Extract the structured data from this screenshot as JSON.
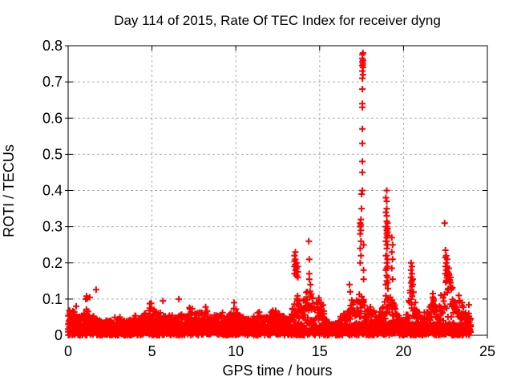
{
  "page": {
    "background": "#ffffff"
  },
  "chart_data": {
    "type": "scatter",
    "title": "Day 114 of 2015, Rate Of TEC Index for receiver dyng",
    "xlabel": "GPS time / hours",
    "ylabel": "ROTI / TECUs",
    "series_name": "ROTI",
    "legend": "none",
    "grid": true,
    "xlim": [
      0,
      25
    ],
    "ylim": [
      0,
      0.8
    ],
    "xticks": {
      "values": [
        0,
        5,
        10,
        15,
        20,
        25
      ],
      "labels": [
        "0",
        "5",
        "10",
        "15",
        "20",
        "25"
      ]
    },
    "yticks": {
      "values": [
        0,
        0.1,
        0.2,
        0.3,
        0.4,
        0.5,
        0.6,
        0.7,
        0.8
      ],
      "labels": [
        "0",
        "0.1",
        "0.2",
        "0.3",
        "0.4",
        "0.5",
        "0.6",
        "0.7",
        "0.8"
      ]
    },
    "marker": {
      "shape": "plus",
      "color": "#ff0000",
      "size": 8,
      "stroke_width": 2
    },
    "grid_color": "#b0b0b0",
    "axis_color": "#000000",
    "data_end_hour": 24.0,
    "column_step_hours": 0.04,
    "points_per_column": 4,
    "envelope_max": [
      [
        0,
        0.055
      ],
      [
        0.3,
        0.075
      ],
      [
        0.6,
        0.05
      ],
      [
        0.9,
        0.06
      ],
      [
        1.2,
        0.065
      ],
      [
        1.5,
        0.055
      ],
      [
        1.8,
        0.045
      ],
      [
        2.2,
        0.04
      ],
      [
        2.6,
        0.042
      ],
      [
        3,
        0.045
      ],
      [
        3.4,
        0.04
      ],
      [
        3.8,
        0.045
      ],
      [
        4.2,
        0.05
      ],
      [
        4.6,
        0.055
      ],
      [
        4.9,
        0.08
      ],
      [
        5.1,
        0.075
      ],
      [
        5.4,
        0.06
      ],
      [
        5.8,
        0.05
      ],
      [
        6.2,
        0.048
      ],
      [
        6.6,
        0.055
      ],
      [
        7,
        0.06
      ],
      [
        7.3,
        0.07
      ],
      [
        7.6,
        0.06
      ],
      [
        7.9,
        0.068
      ],
      [
        8.2,
        0.062
      ],
      [
        8.6,
        0.05
      ],
      [
        9,
        0.06
      ],
      [
        9.4,
        0.05
      ],
      [
        9.9,
        0.068
      ],
      [
        10.3,
        0.05
      ],
      [
        10.7,
        0.045
      ],
      [
        11.1,
        0.05
      ],
      [
        11.4,
        0.058
      ],
      [
        11.8,
        0.05
      ],
      [
        12.1,
        0.06
      ],
      [
        12.4,
        0.068
      ],
      [
        12.7,
        0.058
      ],
      [
        13,
        0.05
      ],
      [
        13.3,
        0.06
      ],
      [
        13.5,
        0.095
      ],
      [
        13.7,
        0.105
      ],
      [
        13.9,
        0.08
      ],
      [
        14.1,
        0.09
      ],
      [
        14.3,
        0.13
      ],
      [
        14.5,
        0.115
      ],
      [
        14.7,
        0.085
      ],
      [
        15,
        0.1
      ],
      [
        15.2,
        0.08
      ],
      [
        15.45,
        0.035
      ],
      [
        15.8,
        0.028
      ],
      [
        16.1,
        0.032
      ],
      [
        16.4,
        0.06
      ],
      [
        16.7,
        0.075
      ],
      [
        17,
        0.09
      ],
      [
        17.2,
        0.1
      ],
      [
        17.45,
        0.12
      ],
      [
        17.6,
        0.1
      ],
      [
        17.85,
        0.06
      ],
      [
        18.1,
        0.072
      ],
      [
        18.4,
        0.05
      ],
      [
        18.7,
        0.062
      ],
      [
        19,
        0.12
      ],
      [
        19.25,
        0.115
      ],
      [
        19.45,
        0.09
      ],
      [
        19.65,
        0.05
      ],
      [
        19.9,
        0.042
      ],
      [
        20.15,
        0.05
      ],
      [
        20.4,
        0.12
      ],
      [
        20.6,
        0.13
      ],
      [
        20.85,
        0.06
      ],
      [
        21.1,
        0.05
      ],
      [
        21.35,
        0.06
      ],
      [
        21.6,
        0.085
      ],
      [
        21.85,
        0.09
      ],
      [
        22.05,
        0.065
      ],
      [
        22.3,
        0.12
      ],
      [
        22.5,
        0.15
      ],
      [
        22.7,
        0.17
      ],
      [
        22.9,
        0.14
      ],
      [
        23.1,
        0.085
      ],
      [
        23.35,
        0.09
      ],
      [
        23.6,
        0.065
      ],
      [
        23.85,
        0.055
      ],
      [
        24,
        0.045
      ]
    ],
    "spike_points": [
      [
        0.48,
        0.08
      ],
      [
        1.05,
        0.1
      ],
      [
        1.1,
        0.108
      ],
      [
        1.15,
        0.102
      ],
      [
        1.28,
        0.105
      ],
      [
        1.67,
        0.126
      ],
      [
        4.95,
        0.088
      ],
      [
        5.65,
        0.095
      ],
      [
        6.6,
        0.1
      ],
      [
        8.2,
        0.078
      ],
      [
        9.9,
        0.09
      ],
      [
        13.5,
        0.17
      ],
      [
        13.5,
        0.19
      ],
      [
        13.5,
        0.205
      ],
      [
        13.5,
        0.22
      ],
      [
        13.55,
        0.18
      ],
      [
        13.55,
        0.195
      ],
      [
        13.55,
        0.21
      ],
      [
        13.55,
        0.23
      ],
      [
        13.62,
        0.165
      ],
      [
        13.62,
        0.185
      ],
      [
        13.62,
        0.2
      ],
      [
        13.7,
        0.16
      ],
      [
        13.7,
        0.175
      ],
      [
        13.7,
        0.19
      ],
      [
        14.35,
        0.26
      ],
      [
        14.38,
        0.21
      ],
      [
        14.38,
        0.17
      ],
      [
        14.38,
        0.155
      ],
      [
        14.45,
        0.14
      ],
      [
        16.78,
        0.14
      ],
      [
        16.82,
        0.12
      ],
      [
        17.42,
        0.2
      ],
      [
        17.42,
        0.24
      ],
      [
        17.42,
        0.28
      ],
      [
        17.42,
        0.3
      ],
      [
        17.42,
        0.31
      ],
      [
        17.46,
        0.22
      ],
      [
        17.46,
        0.26
      ],
      [
        17.46,
        0.29
      ],
      [
        17.46,
        0.305
      ],
      [
        17.46,
        0.32
      ],
      [
        17.5,
        0.35
      ],
      [
        17.5,
        0.39
      ],
      [
        17.55,
        0.4
      ],
      [
        17.55,
        0.45
      ],
      [
        17.55,
        0.48
      ],
      [
        17.55,
        0.53
      ],
      [
        17.55,
        0.57
      ],
      [
        17.55,
        0.63
      ],
      [
        17.55,
        0.64
      ],
      [
        17.55,
        0.68
      ],
      [
        17.55,
        0.71
      ],
      [
        17.55,
        0.73
      ],
      [
        17.55,
        0.745
      ],
      [
        17.55,
        0.755
      ],
      [
        17.55,
        0.765
      ],
      [
        17.55,
        0.775
      ],
      [
        17.58,
        0.72
      ],
      [
        17.58,
        0.74
      ],
      [
        17.58,
        0.75
      ],
      [
        17.58,
        0.76
      ],
      [
        17.58,
        0.78
      ],
      [
        17.62,
        0.25
      ],
      [
        17.62,
        0.18
      ],
      [
        17.62,
        0.155
      ],
      [
        18.95,
        0.14
      ],
      [
        18.95,
        0.18
      ],
      [
        18.95,
        0.22
      ],
      [
        18.95,
        0.26
      ],
      [
        18.95,
        0.3
      ],
      [
        18.95,
        0.34
      ],
      [
        18.95,
        0.38
      ],
      [
        19.0,
        0.4
      ],
      [
        19.0,
        0.37
      ],
      [
        19.0,
        0.35
      ],
      [
        19.0,
        0.33
      ],
      [
        19.0,
        0.315
      ],
      [
        19.0,
        0.3
      ],
      [
        19.0,
        0.29
      ],
      [
        19.0,
        0.28
      ],
      [
        19.0,
        0.27
      ],
      [
        19.0,
        0.26
      ],
      [
        19.0,
        0.25
      ],
      [
        19.0,
        0.24
      ],
      [
        19.0,
        0.22
      ],
      [
        19.0,
        0.2
      ],
      [
        19.0,
        0.185
      ],
      [
        19.0,
        0.165
      ],
      [
        19.0,
        0.15
      ],
      [
        19.05,
        0.31
      ],
      [
        19.05,
        0.295
      ],
      [
        19.05,
        0.285
      ],
      [
        19.05,
        0.275
      ],
      [
        19.05,
        0.25
      ],
      [
        19.05,
        0.21
      ],
      [
        19.05,
        0.19
      ],
      [
        19.05,
        0.16
      ],
      [
        19.05,
        0.145
      ],
      [
        19.3,
        0.27
      ],
      [
        19.3,
        0.23
      ],
      [
        19.3,
        0.185
      ],
      [
        19.35,
        0.25
      ],
      [
        19.35,
        0.21
      ],
      [
        19.35,
        0.155
      ],
      [
        20.45,
        0.2
      ],
      [
        20.45,
        0.18
      ],
      [
        20.45,
        0.16
      ],
      [
        20.45,
        0.145
      ],
      [
        20.5,
        0.19
      ],
      [
        20.5,
        0.17
      ],
      [
        20.5,
        0.15
      ],
      [
        20.5,
        0.135
      ],
      [
        20.55,
        0.155
      ],
      [
        20.55,
        0.14
      ],
      [
        21.75,
        0.115
      ],
      [
        21.75,
        0.105
      ],
      [
        21.8,
        0.1
      ],
      [
        22.45,
        0.31
      ],
      [
        22.5,
        0.235
      ],
      [
        22.5,
        0.215
      ],
      [
        22.5,
        0.19
      ],
      [
        22.5,
        0.17
      ],
      [
        22.55,
        0.22
      ],
      [
        22.55,
        0.2
      ],
      [
        22.55,
        0.18
      ],
      [
        22.6,
        0.21
      ],
      [
        22.6,
        0.19
      ],
      [
        22.6,
        0.165
      ],
      [
        22.7,
        0.185
      ],
      [
        22.7,
        0.17
      ],
      [
        22.7,
        0.155
      ],
      [
        22.8,
        0.16
      ],
      [
        22.8,
        0.145
      ],
      [
        23.3,
        0.11
      ],
      [
        23.5,
        0.09
      ],
      [
        23.9,
        0.084
      ]
    ]
  }
}
